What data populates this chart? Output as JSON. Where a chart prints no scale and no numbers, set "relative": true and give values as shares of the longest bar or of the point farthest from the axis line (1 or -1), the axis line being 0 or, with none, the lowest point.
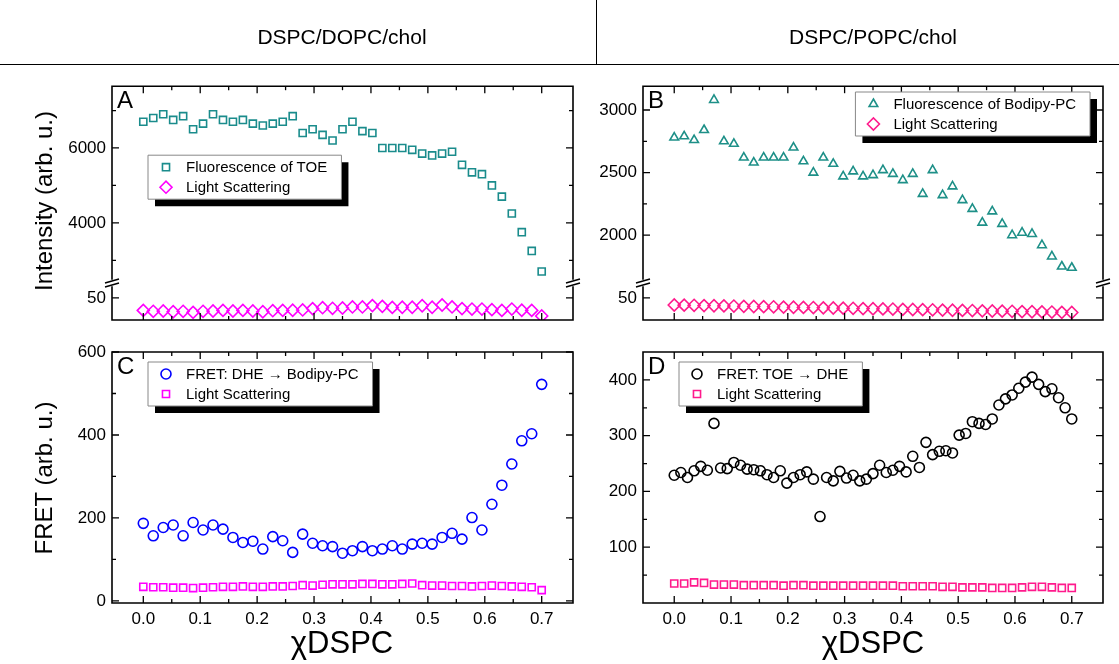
{
  "chart_data": [
    {
      "type": "scatter",
      "title": "DSPC/DOPC/chol",
      "ylabel": "Intensity (arb. u.)",
      "annotations": [
        "A"
      ],
      "legend": "left",
      "tick_labels": "y",
      "x": [
        0,
        0.0175,
        0.035,
        0.0525,
        0.07,
        0.0875,
        0.105,
        0.1225,
        0.14,
        0.1575,
        0.175,
        0.1925,
        0.21,
        0.2275,
        0.245,
        0.2625,
        0.28,
        0.2975,
        0.315,
        0.3325,
        0.35,
        0.3675,
        0.385,
        0.4025,
        0.42,
        0.4375,
        0.455,
        0.4725,
        0.49,
        0.5075,
        0.525,
        0.5425,
        0.56,
        0.5775,
        0.595,
        0.6125,
        0.63,
        0.6475,
        0.665,
        0.6825,
        0.7
      ],
      "xlim": [
        -0.055,
        0.755
      ],
      "xticks": [
        {
          "value": 0,
          "label": null
        },
        {
          "value": 0.05,
          "label": null
        },
        {
          "value": 0.1,
          "label": null
        },
        {
          "value": 0.15,
          "label": null
        },
        {
          "value": 0.2,
          "label": null
        },
        {
          "value": 0.25,
          "label": null
        },
        {
          "value": 0.3,
          "label": null
        },
        {
          "value": 0.35,
          "label": null
        },
        {
          "value": 0.4,
          "label": null
        },
        {
          "value": 0.45,
          "label": null
        },
        {
          "value": 0.5,
          "label": null
        },
        {
          "value": 0.55,
          "label": null
        },
        {
          "value": 0.6,
          "label": null
        },
        {
          "value": 0.65,
          "label": null
        },
        {
          "value": 0.7,
          "label": null
        }
      ],
      "ylim": [
        2500,
        7650
      ],
      "yticks": [
        {
          "value": 3000,
          "label": null
        },
        4000,
        {
          "value": 5000,
          "label": null
        },
        6000,
        {
          "value": 7000,
          "label": null
        }
      ],
      "series": [
        {
          "name": "Fluorescence of TOE",
          "color": "#1a8c8c",
          "marker": "square",
          "values": [
            6700,
            6800,
            6900,
            6750,
            6850,
            6500,
            6650,
            6900,
            6750,
            6700,
            6750,
            6650,
            6600,
            6650,
            6700,
            6850,
            6400,
            6500,
            6350,
            6200,
            6500,
            6700,
            6450,
            6400,
            6000,
            6000,
            6000,
            5950,
            5850,
            5800,
            5850,
            5900,
            5550,
            5350,
            5300,
            5000,
            4700,
            4250,
            3750,
            3250,
            2700
          ]
        }
      ]
    },
    {
      "type": "scatter",
      "relative": true,
      "annotations": [
        "50"
      ],
      "legend": "left",
      "tick_labels": false,
      "x": [
        0,
        0.0175,
        0.035,
        0.0525,
        0.07,
        0.0875,
        0.105,
        0.1225,
        0.14,
        0.1575,
        0.175,
        0.1925,
        0.21,
        0.2275,
        0.245,
        0.2625,
        0.28,
        0.2975,
        0.315,
        0.3325,
        0.35,
        0.3675,
        0.385,
        0.4025,
        0.42,
        0.4375,
        0.455,
        0.4725,
        0.49,
        0.5075,
        0.525,
        0.5425,
        0.56,
        0.5775,
        0.595,
        0.6125,
        0.63,
        0.6475,
        0.665,
        0.6825,
        0.7
      ],
      "xlim": [
        -0.055,
        0.755
      ],
      "xticks": [
        {
          "value": 0,
          "label": null
        },
        {
          "value": 0.05,
          "label": null
        },
        {
          "value": 0.1,
          "label": null
        },
        {
          "value": 0.15,
          "label": null
        },
        {
          "value": 0.2,
          "label": null
        },
        {
          "value": 0.25,
          "label": null
        },
        {
          "value": 0.3,
          "label": null
        },
        {
          "value": 0.35,
          "label": null
        },
        {
          "value": 0.4,
          "label": null
        },
        {
          "value": 0.45,
          "label": null
        },
        {
          "value": 0.5,
          "label": null
        },
        {
          "value": 0.55,
          "label": null
        },
        {
          "value": 0.6,
          "label": null
        },
        {
          "value": 0.65,
          "label": null
        },
        {
          "value": 0.7,
          "label": null
        }
      ],
      "series": [
        {
          "name": "Light Scattering",
          "color": "#ff00ff",
          "marker": "diamond",
          "values": [
            0.64,
            0.58,
            0.6,
            0.55,
            0.58,
            0.51,
            0.58,
            0.6,
            0.64,
            0.6,
            0.64,
            0.6,
            0.55,
            0.62,
            0.64,
            0.65,
            0.67,
            0.76,
            0.82,
            0.78,
            0.8,
            0.87,
            0.87,
            0.96,
            0.91,
            0.84,
            0.85,
            0.85,
            0.95,
            0.85,
            1,
            0.87,
            0.76,
            0.73,
            0.73,
            0.69,
            0.64,
            0.73,
            0.65,
            0.64,
            0.27
          ]
        }
      ]
    },
    {
      "type": "scatter",
      "title": "DSPC/POPC/chol",
      "annotations": [
        "B"
      ],
      "legend": "top right",
      "tick_labels": "y",
      "x": [
        0,
        0.0175,
        0.035,
        0.0525,
        0.07,
        0.0875,
        0.105,
        0.1225,
        0.14,
        0.1575,
        0.175,
        0.1925,
        0.21,
        0.2275,
        0.245,
        0.2625,
        0.28,
        0.2975,
        0.315,
        0.3325,
        0.35,
        0.3675,
        0.385,
        0.4025,
        0.42,
        0.4375,
        0.455,
        0.4725,
        0.49,
        0.5075,
        0.525,
        0.5425,
        0.56,
        0.5775,
        0.595,
        0.6125,
        0.63,
        0.6475,
        0.665,
        0.6825,
        0.7
      ],
      "xlim": [
        -0.055,
        0.755
      ],
      "xticks": [
        {
          "value": 0,
          "label": null
        },
        {
          "value": 0.05,
          "label": null
        },
        {
          "value": 0.1,
          "label": null
        },
        {
          "value": 0.15,
          "label": null
        },
        {
          "value": 0.2,
          "label": null
        },
        {
          "value": 0.25,
          "label": null
        },
        {
          "value": 0.3,
          "label": null
        },
        {
          "value": 0.35,
          "label": null
        },
        {
          "value": 0.4,
          "label": null
        },
        {
          "value": 0.45,
          "label": null
        },
        {
          "value": 0.5,
          "label": null
        },
        {
          "value": 0.55,
          "label": null
        },
        {
          "value": 0.6,
          "label": null
        },
        {
          "value": 0.65,
          "label": null
        },
        {
          "value": 0.7,
          "label": null
        }
      ],
      "ylim": [
        1650,
        3190
      ],
      "yticks": [
        2000,
        {
          "value": 2250,
          "label": null
        },
        2500,
        {
          "value": 2750,
          "label": null
        },
        3000
      ],
      "series": [
        {
          "name": "Fluorescence of Bodipy-PC",
          "color": "#1e9088",
          "marker": "triangle",
          "values": [
            2780,
            2790,
            2760,
            2840,
            3080,
            2750,
            2730,
            2620,
            2580,
            2620,
            2620,
            2620,
            2700,
            2590,
            2500,
            2620,
            2570,
            2470,
            2510,
            2470,
            2480,
            2520,
            2490,
            2440,
            2490,
            2330,
            2520,
            2320,
            2390,
            2280,
            2210,
            2100,
            2190,
            2090,
            2000,
            2020,
            2010,
            1920,
            1830,
            1750,
            1740
          ]
        }
      ]
    },
    {
      "type": "scatter",
      "relative": true,
      "annotations": [
        "50"
      ],
      "legend": "top right",
      "tick_labels": false,
      "x": [
        0,
        0.0175,
        0.035,
        0.0525,
        0.07,
        0.0875,
        0.105,
        0.1225,
        0.14,
        0.1575,
        0.175,
        0.1925,
        0.21,
        0.2275,
        0.245,
        0.2625,
        0.28,
        0.2975,
        0.315,
        0.3325,
        0.35,
        0.3675,
        0.385,
        0.4025,
        0.42,
        0.4375,
        0.455,
        0.4725,
        0.49,
        0.5075,
        0.525,
        0.5425,
        0.56,
        0.5775,
        0.595,
        0.6125,
        0.63,
        0.6475,
        0.665,
        0.6825,
        0.7
      ],
      "xlim": [
        -0.055,
        0.755
      ],
      "xticks": [
        {
          "value": 0,
          "label": null
        },
        {
          "value": 0.05,
          "label": null
        },
        {
          "value": 0.1,
          "label": null
        },
        {
          "value": 0.15,
          "label": null
        },
        {
          "value": 0.2,
          "label": null
        },
        {
          "value": 0.25,
          "label": null
        },
        {
          "value": 0.3,
          "label": null
        },
        {
          "value": 0.35,
          "label": null
        },
        {
          "value": 0.4,
          "label": null
        },
        {
          "value": 0.45,
          "label": null
        },
        {
          "value": 0.5,
          "label": null
        },
        {
          "value": 0.55,
          "label": null
        },
        {
          "value": 0.6,
          "label": null
        },
        {
          "value": 0.65,
          "label": null
        },
        {
          "value": 0.7,
          "label": null
        }
      ],
      "series": [
        {
          "name": "Light Scattering",
          "color": "#ff1a8c",
          "marker": "diamond",
          "values": [
            1,
            0.99,
            0.98,
            0.96,
            0.95,
            0.94,
            0.93,
            0.91,
            0.9,
            0.89,
            0.88,
            0.86,
            0.85,
            0.84,
            0.83,
            0.81,
            0.8,
            0.79,
            0.78,
            0.76,
            0.75,
            0.74,
            0.73,
            0.71,
            0.7,
            0.69,
            0.68,
            0.66,
            0.65,
            0.64,
            0.63,
            0.61,
            0.6,
            0.59,
            0.58,
            0.56,
            0.55,
            0.54,
            0.53,
            0.51,
            0.5
          ]
        }
      ]
    },
    {
      "type": "scatter",
      "ylabel": "FRET (arb. u.)",
      "xlabel": "χDSPC",
      "annotations": [
        "C"
      ],
      "legend": "top left",
      "x": [
        0,
        0.0175,
        0.035,
        0.0525,
        0.07,
        0.0875,
        0.105,
        0.1225,
        0.14,
        0.1575,
        0.175,
        0.1925,
        0.21,
        0.2275,
        0.245,
        0.2625,
        0.28,
        0.2975,
        0.315,
        0.3325,
        0.35,
        0.3675,
        0.385,
        0.4025,
        0.42,
        0.4375,
        0.455,
        0.4725,
        0.49,
        0.5075,
        0.525,
        0.5425,
        0.56,
        0.5775,
        0.595,
        0.6125,
        0.63,
        0.6475,
        0.665,
        0.6825,
        0.7
      ],
      "xlim": [
        -0.055,
        0.755
      ],
      "xticks": [
        {
          "value": 0,
          "label": "0.0"
        },
        {
          "value": 0.05,
          "label": null
        },
        {
          "value": 0.1,
          "label": "0.1"
        },
        {
          "value": 0.15,
          "label": null
        },
        {
          "value": 0.2,
          "label": "0.2"
        },
        {
          "value": 0.25,
          "label": null
        },
        {
          "value": 0.3,
          "label": "0.3"
        },
        {
          "value": 0.35,
          "label": null
        },
        {
          "value": 0.4,
          "label": "0.4"
        },
        {
          "value": 0.45,
          "label": null
        },
        {
          "value": 0.5,
          "label": "0.5"
        },
        {
          "value": 0.55,
          "label": null
        },
        {
          "value": 0.6,
          "label": "0.6"
        },
        {
          "value": 0.65,
          "label": null
        },
        {
          "value": 0.7,
          "label": "0.7"
        }
      ],
      "ylim": [
        -5,
        600
      ],
      "yticks": [
        0,
        {
          "value": 100,
          "label": null
        },
        200,
        {
          "value": 300,
          "label": null
        },
        400,
        {
          "value": 500,
          "label": null
        },
        600
      ],
      "series": [
        {
          "name": "FRET: DHE → Bodipy-PC",
          "color": "#0000ff",
          "marker": "circle",
          "values": [
            187,
            157,
            177,
            183,
            157,
            189,
            171,
            183,
            173,
            153,
            141,
            144,
            125,
            155,
            145,
            117,
            161,
            139,
            133,
            131,
            115,
            121,
            131,
            121,
            125,
            133,
            125,
            137,
            139,
            137,
            153,
            163,
            149,
            201,
            171,
            233,
            279,
            330,
            386,
            403,
            522
          ]
        },
        {
          "name": "Light Scattering",
          "color": "#ff00ff",
          "marker": "square",
          "values": [
            34,
            33,
            33,
            32,
            32,
            31,
            32,
            33,
            34,
            34,
            35,
            34,
            34,
            35,
            35,
            36,
            38,
            37,
            39,
            40,
            40,
            40,
            41,
            41,
            40,
            40,
            41,
            42,
            38,
            37,
            37,
            36,
            36,
            35,
            36,
            37,
            36,
            35,
            34,
            33,
            26
          ]
        }
      ]
    },
    {
      "type": "scatter",
      "xlabel": "χDSPC",
      "annotations": [
        "D"
      ],
      "legend": "top left",
      "x": [
        0,
        0.0175,
        0.035,
        0.0525,
        0.07,
        0.0875,
        0.105,
        0.1225,
        0.14,
        0.1575,
        0.175,
        0.1925,
        0.21,
        0.2275,
        0.245,
        0.2625,
        0.28,
        0.2975,
        0.315,
        0.3325,
        0.35,
        0.3675,
        0.385,
        0.4025,
        0.42,
        0.4375,
        0.455,
        0.4725,
        0.49,
        0.5075,
        0.525,
        0.5425,
        0.56,
        0.5775,
        0.595,
        0.6125,
        0.63,
        0.6475,
        0.665,
        0.6825,
        0.7
      ],
      "xlim": [
        -0.055,
        0.755
      ],
      "xticks": [
        {
          "value": 0,
          "label": "0.0"
        },
        {
          "value": 0.05,
          "label": null
        },
        {
          "value": 0.1,
          "label": "0.1"
        },
        {
          "value": 0.15,
          "label": null
        },
        {
          "value": 0.2,
          "label": "0.2"
        },
        {
          "value": 0.25,
          "label": null
        },
        {
          "value": 0.3,
          "label": "0.3"
        },
        {
          "value": 0.35,
          "label": null
        },
        {
          "value": 0.4,
          "label": "0.4"
        },
        {
          "value": 0.45,
          "label": null
        },
        {
          "value": 0.5,
          "label": "0.5"
        },
        {
          "value": 0.55,
          "label": null
        },
        {
          "value": 0.6,
          "label": "0.6"
        },
        {
          "value": 0.65,
          "label": null
        },
        {
          "value": 0.7,
          "label": "0.7"
        }
      ],
      "ylim": [
        0,
        450
      ],
      "yticks": [
        {
          "value": 50,
          "label": null
        },
        100,
        {
          "value": 150,
          "label": null
        },
        200,
        {
          "value": 250,
          "label": null
        },
        300,
        {
          "value": 350,
          "label": null
        },
        400
      ],
      "series": [
        {
          "name": "FRET: TOE → DHE",
          "color": "#000000",
          "marker": "circle",
          "x": [
            0,
            0.0117,
            0.0233,
            0.035,
            0.0467,
            0.0583,
            0.07,
            0.0817,
            0.0933,
            0.105,
            0.1167,
            0.1283,
            0.14,
            0.1517,
            0.1633,
            0.175,
            0.1867,
            0.1983,
            0.21,
            0.2217,
            0.2333,
            0.245,
            0.2567,
            0.2683,
            0.28,
            0.2917,
            0.3033,
            0.315,
            0.3267,
            0.3383,
            0.35,
            0.3617,
            0.3733,
            0.385,
            0.3967,
            0.4083,
            0.42,
            0.4317,
            0.4433,
            0.455,
            0.4667,
            0.4783,
            0.49,
            0.5017,
            0.5133,
            0.525,
            0.5367,
            0.5483,
            0.56,
            0.5717,
            0.5833,
            0.595,
            0.6067,
            0.6183,
            0.63,
            0.6417,
            0.6533,
            0.665,
            0.6767,
            0.6883,
            0.7
          ],
          "values": [
            229,
            234,
            225,
            237,
            245,
            238,
            322,
            242,
            241,
            252,
            247,
            240,
            239,
            237,
            230,
            225,
            237,
            215,
            225,
            230,
            235,
            222,
            155,
            225,
            219,
            236,
            224,
            229,
            219,
            222,
            232,
            247,
            234,
            238,
            245,
            235,
            263,
            243,
            288,
            266,
            272,
            273,
            269,
            301,
            304,
            325,
            322,
            320,
            330,
            355,
            366,
            373,
            385,
            396,
            405,
            392,
            379,
            384,
            368,
            350,
            330
          ]
        },
        {
          "name": "Light Scattering",
          "color": "#ff1a8c",
          "marker": "square",
          "values": [
            35,
            35,
            37,
            36,
            33,
            33,
            33,
            32,
            32,
            32,
            32,
            31,
            32,
            32,
            31,
            31,
            31,
            31,
            31,
            31,
            31,
            31,
            31,
            30,
            30,
            30,
            30,
            29,
            29,
            28,
            28,
            28,
            27,
            27,
            27,
            28,
            29,
            29,
            28,
            27,
            27
          ]
        }
      ]
    }
  ]
}
